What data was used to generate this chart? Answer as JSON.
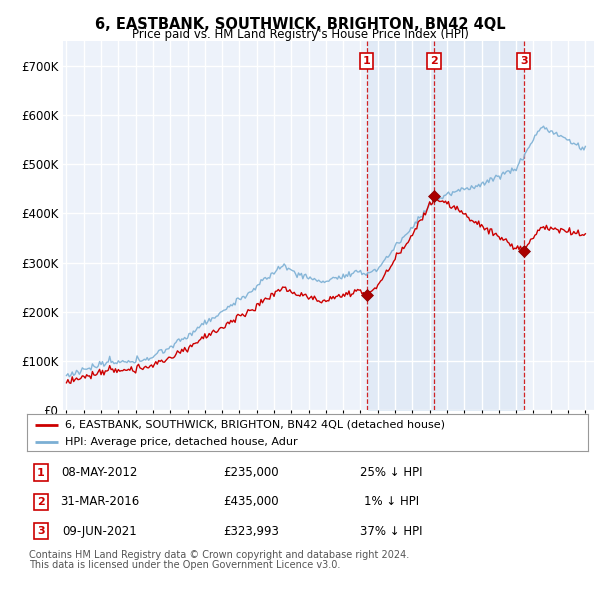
{
  "title": "6, EASTBANK, SOUTHWICK, BRIGHTON, BN42 4QL",
  "subtitle": "Price paid vs. HM Land Registry's House Price Index (HPI)",
  "ylabel_ticks": [
    0,
    100000,
    200000,
    300000,
    400000,
    500000,
    600000,
    700000
  ],
  "ylabel_labels": [
    "£0",
    "£100K",
    "£200K",
    "£300K",
    "£400K",
    "£500K",
    "£600K",
    "£700K"
  ],
  "sale_color": "#cc0000",
  "hpi_color": "#7bafd4",
  "shade_color": "#dce8f5",
  "sale_label": "6, EASTBANK, SOUTHWICK, BRIGHTON, BN42 4QL (detached house)",
  "hpi_label": "HPI: Average price, detached house, Adur",
  "transactions": [
    {
      "label": "1",
      "date": "08-MAY-2012",
      "price": 235000,
      "pct": "25% ↓ HPI",
      "year": 2012.36
    },
    {
      "label": "2",
      "date": "31-MAR-2016",
      "price": 435000,
      "pct": "1% ↓ HPI",
      "year": 2016.25
    },
    {
      "label": "3",
      "date": "09-JUN-2021",
      "price": 323993,
      "pct": "37% ↓ HPI",
      "year": 2021.44
    }
  ],
  "footer1": "Contains HM Land Registry data © Crown copyright and database right 2024.",
  "footer2": "This data is licensed under the Open Government Licence v3.0.",
  "bg_color": "#ffffff",
  "plot_bg_color": "#edf2fa",
  "grid_color": "#ffffff"
}
